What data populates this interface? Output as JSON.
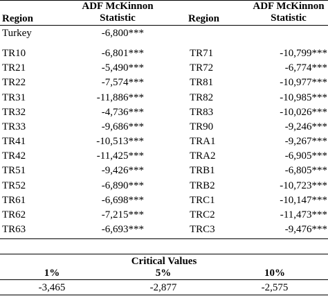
{
  "header": {
    "region_left": "Region",
    "stat_left_line1": "ADF McKinnon",
    "stat_left_line2": "Statistic",
    "region_right": "Region",
    "stat_right_line1": "ADF McKinnon",
    "stat_right_line2": "Statistic"
  },
  "turkey": {
    "region": "Turkey",
    "stat": "-6,800***"
  },
  "rows": [
    {
      "left_region": "TR10",
      "left_stat": "-6,801***",
      "right_region": "TR71",
      "right_stat": "-10,799***"
    },
    {
      "left_region": "TR21",
      "left_stat": "-5,490***",
      "right_region": "TR72",
      "right_stat": "-6,774***"
    },
    {
      "left_region": "TR22",
      "left_stat": "-7,574***",
      "right_region": "TR81",
      "right_stat": "-10,977***"
    },
    {
      "left_region": "TR31",
      "left_stat": "-11,886***",
      "right_region": "TR82",
      "right_stat": "-10,985***"
    },
    {
      "left_region": "TR32",
      "left_stat": "-4,736***",
      "right_region": "TR83",
      "right_stat": "-10,026***"
    },
    {
      "left_region": "TR33",
      "left_stat": "-9,686***",
      "right_region": "TR90",
      "right_stat": "-9,246***"
    },
    {
      "left_region": "TR41",
      "left_stat": "-10,513***",
      "right_region": "TRA1",
      "right_stat": "-9,267***"
    },
    {
      "left_region": "TR42",
      "left_stat": "-11,425***",
      "right_region": "TRA2",
      "right_stat": "-6,905***"
    },
    {
      "left_region": "TR51",
      "left_stat": "-9,426***",
      "right_region": "TRB1",
      "right_stat": "-6,805***"
    },
    {
      "left_region": "TR52",
      "left_stat": "-6,890***",
      "right_region": "TRB2",
      "right_stat": "-10,723***"
    },
    {
      "left_region": "TR61",
      "left_stat": "-6,698***",
      "right_region": "TRC1",
      "right_stat": "-10,147***"
    },
    {
      "left_region": "TR62",
      "left_stat": "-7,215***",
      "right_region": "TRC2",
      "right_stat": "-11,473***"
    },
    {
      "left_region": "TR63",
      "left_stat": "-6,693***",
      "right_region": "TRC3",
      "right_stat": "-9,476***"
    }
  ],
  "critical": {
    "title": "Critical Values",
    "levels": [
      "1%",
      "5%",
      "10%"
    ],
    "values": [
      "-3,465",
      "-2,877",
      "-2,575"
    ]
  }
}
